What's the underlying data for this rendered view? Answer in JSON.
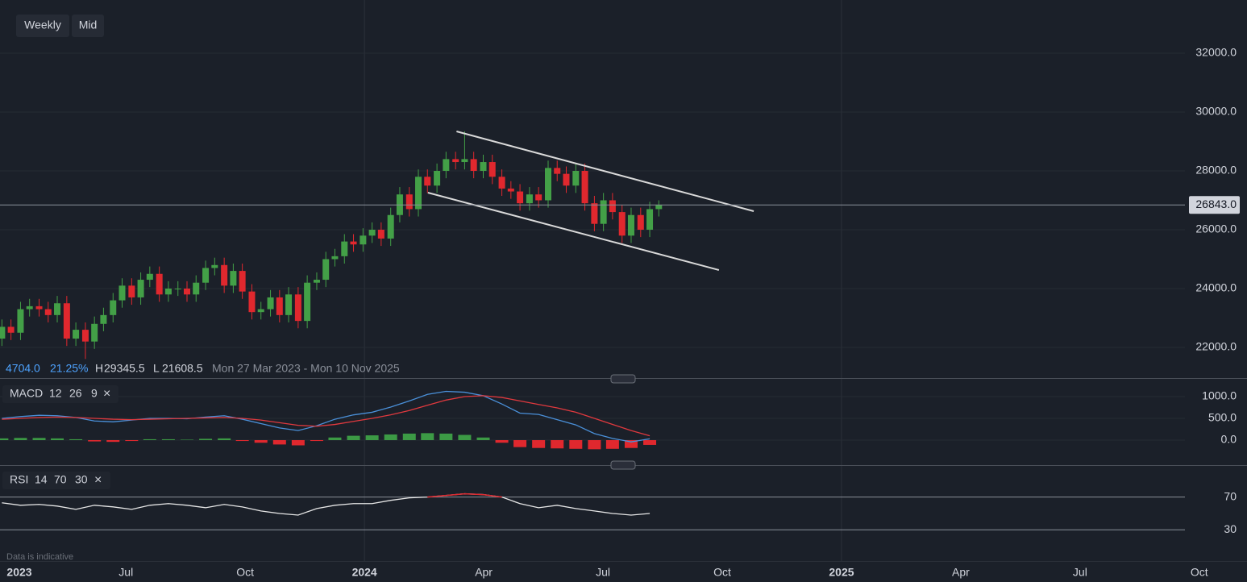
{
  "ui": {
    "buttons": [
      "Weekly",
      "Mid"
    ],
    "info": {
      "change": "4704.0",
      "change_pct": "21.25%",
      "high_label": "H",
      "high": 29345.5,
      "low_label": "L",
      "low": 21608.5,
      "range": "Mon 27 Mar 2023 - Mon 10 Nov 2025"
    },
    "footnote": "Data is indicative"
  },
  "chart_data": {
    "type": "candlestick",
    "x": [
      2023.24,
      2023.259,
      2023.279,
      2023.298,
      2023.318,
      2023.337,
      2023.356,
      2023.376,
      2023.395,
      2023.415,
      2023.434,
      2023.453,
      2023.473,
      2023.492,
      2023.512,
      2023.531,
      2023.55,
      2023.57,
      2023.589,
      2023.609,
      2023.628,
      2023.647,
      2023.667,
      2023.686,
      2023.706,
      2023.725,
      2023.744,
      2023.764,
      2023.783,
      2023.803,
      2023.822,
      2023.841,
      2023.861,
      2023.88,
      2023.9,
      2023.919,
      2023.938,
      2023.958,
      2023.977,
      2023.997,
      2024.016,
      2024.035,
      2024.055,
      2024.074,
      2024.094,
      2024.113,
      2024.132,
      2024.152,
      2024.171,
      2024.191,
      2024.21,
      2024.229,
      2024.249,
      2024.268,
      2024.288,
      2024.307,
      2024.326,
      2024.346,
      2024.365,
      2024.385,
      2024.404,
      2024.423,
      2024.443,
      2024.462,
      2024.482,
      2024.501,
      2024.52,
      2024.54,
      2024.559,
      2024.579,
      2024.598,
      2024.617
    ],
    "open": [
      22300,
      22700,
      22500,
      23300,
      23400,
      23300,
      23100,
      23500,
      22300,
      22600,
      22200,
      22800,
      23100,
      23600,
      24100,
      23700,
      24300,
      24500,
      23800,
      24000,
      24000,
      23800,
      24200,
      24700,
      24800,
      24100,
      24600,
      23900,
      23200,
      23300,
      23700,
      23100,
      23800,
      22900,
      24200,
      24300,
      25000,
      25100,
      25600,
      25500,
      25800,
      26000,
      25700,
      26500,
      27200,
      26700,
      27800,
      27500,
      28000,
      28400,
      28300,
      28400,
      28000,
      28300,
      27800,
      27400,
      27300,
      26900,
      27200,
      27000,
      28100,
      27900,
      27500,
      28000,
      26900,
      26200,
      27000,
      26600,
      25800,
      26500,
      26000,
      26700
    ],
    "high": [
      22950,
      22950,
      23550,
      23650,
      23650,
      23550,
      23750,
      23750,
      22850,
      22850,
      23050,
      23350,
      23850,
      24350,
      24350,
      24550,
      24750,
      24750,
      24250,
      24250,
      24250,
      24450,
      24950,
      25050,
      25050,
      24850,
      24850,
      24150,
      23550,
      23950,
      23950,
      24050,
      24050,
      24450,
      24550,
      25250,
      25350,
      25850,
      25850,
      26050,
      26250,
      26250,
      26750,
      27450,
      27450,
      28050,
      28050,
      28250,
      28650,
      28650,
      29345.5,
      28650,
      28550,
      28550,
      28050,
      27650,
      27550,
      27450,
      27450,
      28350,
      28350,
      28150,
      28250,
      28250,
      27150,
      27250,
      27250,
      26850,
      26750,
      26750,
      26950,
      27000
    ],
    "low": [
      22050,
      22250,
      22250,
      23050,
      23050,
      22850,
      22850,
      22050,
      22050,
      21608.5,
      21950,
      22550,
      22850,
      23350,
      23450,
      23450,
      24050,
      23550,
      23550,
      23750,
      23550,
      23550,
      23950,
      24450,
      23850,
      23850,
      23650,
      22950,
      22950,
      23050,
      22850,
      22850,
      22650,
      22650,
      23950,
      24050,
      24750,
      24850,
      25250,
      25250,
      25550,
      25450,
      25450,
      26250,
      26450,
      26450,
      27250,
      27250,
      27750,
      28050,
      28050,
      27750,
      27750,
      27550,
      27150,
      27050,
      26650,
      26650,
      26750,
      26750,
      27650,
      27250,
      27250,
      26650,
      25950,
      25950,
      26350,
      25550,
      25550,
      25750,
      25750,
      26450
    ],
    "close": [
      22700,
      22500,
      23300,
      23400,
      23300,
      23100,
      23500,
      22300,
      22600,
      22200,
      22800,
      23100,
      23600,
      24100,
      23700,
      24300,
      24500,
      23800,
      24000,
      24000,
      23800,
      24200,
      24700,
      24800,
      24100,
      24600,
      23900,
      23200,
      23300,
      23700,
      23100,
      23800,
      22900,
      24200,
      24300,
      25000,
      25100,
      25600,
      25500,
      25800,
      26000,
      25700,
      26500,
      27200,
      26700,
      27800,
      27500,
      28000,
      28400,
      28300,
      28400,
      28000,
      28300,
      27800,
      27400,
      27300,
      26900,
      27200,
      27000,
      28100,
      27900,
      27500,
      28000,
      26900,
      26200,
      27000,
      26600,
      25800,
      26500,
      26000,
      26700,
      26843
    ],
    "up_color": "#43a047",
    "down_color": "#e0282e",
    "xlim": [
      2023.236,
      2025.85
    ],
    "xticks": [
      2023,
      {
        "value": 2023.5,
        "label": "Jul"
      },
      {
        "value": 2023.75,
        "label": "Oct"
      },
      2024,
      {
        "value": 2024.25,
        "label": "Apr"
      },
      {
        "value": 2024.5,
        "label": "Jul"
      },
      {
        "value": 2024.75,
        "label": "Oct"
      },
      2025,
      {
        "value": 2025.25,
        "label": "Apr"
      },
      {
        "value": 2025.5,
        "label": "Jul"
      },
      {
        "value": 2025.75,
        "label": "Oct"
      }
    ],
    "ylim": [
      20986,
      33808
    ],
    "yticks": [
      {
        "value": 22000,
        "label": "22000.0"
      },
      {
        "value": 24000,
        "label": "24000.0"
      },
      {
        "value": 26000,
        "label": "26000.0"
      },
      {
        "value": 28000,
        "label": "28000.0"
      },
      {
        "value": 30000,
        "label": "30000.0"
      },
      {
        "value": 32000,
        "label": "32000.0"
      }
    ],
    "current_price": {
      "value": 26843,
      "label": "26843.0"
    },
    "trendlines": [
      {
        "x": [
          2024.193,
          2024.816
        ],
        "y": [
          29342,
          26630
        ],
        "color": "#d9d9d9"
      },
      {
        "x": [
          2024.133,
          2024.743
        ],
        "y": [
          27260,
          24630
        ],
        "color": "#d9d9d9"
      }
    ],
    "indicator_x": [
      2023.24,
      2023.279,
      2023.318,
      2023.356,
      2023.395,
      2023.434,
      2023.473,
      2023.512,
      2023.55,
      2023.589,
      2023.628,
      2023.667,
      2023.706,
      2023.744,
      2023.783,
      2023.822,
      2023.861,
      2023.9,
      2023.938,
      2023.977,
      2024.016,
      2024.055,
      2024.094,
      2024.132,
      2024.171,
      2024.21,
      2024.249,
      2024.288,
      2024.326,
      2024.365,
      2024.404,
      2024.443,
      2024.482,
      2024.52,
      2024.559,
      2024.598
    ],
    "macd": {
      "label": "MACD",
      "params": [
        12,
        26,
        9
      ],
      "ylim": [
        -574,
        1407
      ],
      "yticks": [
        {
          "value": 0,
          "label": "0.0"
        },
        {
          "value": 500,
          "label": "500.0"
        },
        {
          "value": 1000,
          "label": "1000.0"
        }
      ],
      "macd_line": {
        "color": "#4a90d9",
        "values": [
          500,
          540,
          570,
          560,
          520,
          440,
          420,
          460,
          500,
          500,
          490,
          530,
          560,
          480,
          380,
          280,
          220,
          330,
          480,
          580,
          640,
          760,
          900,
          1050,
          1120,
          1100,
          1020,
          830,
          620,
          590,
          470,
          350,
          150,
          40,
          -40,
          30
        ]
      },
      "signal_line": {
        "color": "#e0393e",
        "values": [
          480,
          500,
          520,
          530,
          520,
          500,
          480,
          470,
          480,
          490,
          500,
          510,
          520,
          500,
          460,
          400,
          340,
          320,
          360,
          430,
          500,
          580,
          680,
          800,
          920,
          1000,
          1020,
          980,
          900,
          820,
          740,
          640,
          500,
          360,
          220,
          100
        ]
      },
      "histogram": {
        "up_color": "#3c9a45",
        "down_color": "#e0282e",
        "values": [
          40,
          50,
          50,
          40,
          20,
          -30,
          -40,
          -20,
          20,
          20,
          10,
          30,
          40,
          -20,
          -60,
          -100,
          -120,
          -20,
          60,
          100,
          110,
          130,
          150,
          160,
          150,
          120,
          60,
          -60,
          -160,
          -180,
          -190,
          -200,
          -210,
          -200,
          -180,
          -110
        ]
      }
    },
    "rsi": {
      "label": "RSI",
      "params": [
        14,
        70,
        30
      ],
      "ylim": [
        -12,
        108
      ],
      "yticks": [
        70,
        30
      ],
      "color": "#e6e6e6",
      "overbought_color": "#e0282e",
      "values": [
        63,
        60,
        61,
        59,
        55,
        60,
        58,
        55,
        60,
        62,
        60,
        57,
        61,
        58,
        53,
        50,
        48,
        56,
        60,
        62,
        62,
        66,
        69,
        70,
        72,
        74,
        73,
        70,
        62,
        57,
        60,
        56,
        53,
        50,
        48,
        50
      ]
    }
  }
}
